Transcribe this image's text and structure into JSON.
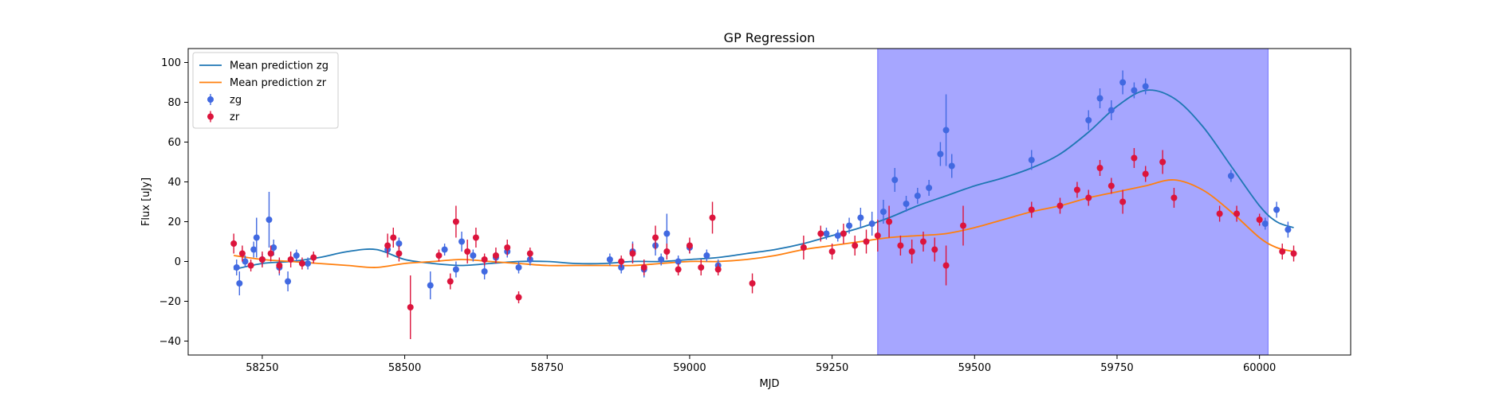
{
  "chart_data": {
    "type": "scatter",
    "title": "GP Regression",
    "xlabel": "MJD",
    "ylabel": "Flux [uJy]",
    "xlim": [
      58120,
      60160
    ],
    "ylim": [
      -47,
      107
    ],
    "x_ticks": [
      58250,
      58500,
      58750,
      59000,
      59250,
      59500,
      59750,
      60000
    ],
    "y_ticks": [
      -40,
      -20,
      0,
      20,
      40,
      60,
      80,
      100
    ],
    "legend_position": "upper-left",
    "shaded_region": {
      "x_start": 59330,
      "x_end": 60015,
      "color": "#a6a6ff"
    },
    "mean_predictions": [
      {
        "name": "Mean prediction zg",
        "color": "#1f77b4",
        "x": [
          58200,
          58250,
          58300,
          58350,
          58400,
          58450,
          58500,
          58550,
          58600,
          58650,
          58700,
          58750,
          58800,
          58850,
          58900,
          58950,
          59000,
          59050,
          59100,
          59150,
          59200,
          59250,
          59300,
          59350,
          59400,
          59450,
          59500,
          59550,
          59600,
          59650,
          59700,
          59750,
          59800,
          59850,
          59900,
          59950,
          60000,
          60030,
          60060
        ],
        "y": [
          -4,
          -1,
          0,
          2,
          5,
          6,
          1,
          -1,
          -2,
          -1,
          0,
          0,
          -1,
          -1,
          0,
          0,
          1,
          2,
          4,
          6,
          9,
          13,
          17,
          22,
          28,
          33,
          38,
          42,
          47,
          54,
          65,
          78,
          86,
          82,
          68,
          48,
          28,
          20,
          17
        ]
      },
      {
        "name": "Mean prediction zr",
        "color": "#ff7f0e",
        "x": [
          58200,
          58250,
          58300,
          58350,
          58400,
          58450,
          58500,
          58550,
          58600,
          58650,
          58700,
          58750,
          58800,
          58850,
          58900,
          58950,
          59000,
          59050,
          59100,
          59150,
          59200,
          59250,
          59300,
          59350,
          59400,
          59450,
          59500,
          59550,
          59600,
          59650,
          59700,
          59750,
          59800,
          59850,
          59900,
          59950,
          60000,
          60030,
          60060
        ],
        "y": [
          3,
          1,
          0,
          -1,
          -2,
          -3,
          -1,
          0,
          1,
          0,
          -1,
          -2,
          -2,
          -2,
          -2,
          -1,
          0,
          0,
          1,
          3,
          6,
          8,
          10,
          12,
          13,
          14,
          17,
          21,
          25,
          28,
          32,
          35,
          38,
          41,
          36,
          25,
          12,
          7,
          5
        ]
      }
    ],
    "series": [
      {
        "name": "zg",
        "color": "#4169e1",
        "x": [
          58205,
          58210,
          58220,
          58235,
          58240,
          58250,
          58262,
          58270,
          58280,
          58295,
          58310,
          58330,
          58470,
          58490,
          58545,
          58570,
          58590,
          58600,
          58620,
          58640,
          58660,
          58680,
          58700,
          58720,
          58860,
          58880,
          58900,
          58920,
          58940,
          58950,
          58960,
          58980,
          59000,
          59030,
          59050,
          59240,
          59260,
          59280,
          59300,
          59320,
          59340,
          59360,
          59380,
          59400,
          59420,
          59440,
          59450,
          59460,
          59600,
          59700,
          59720,
          59740,
          59760,
          59780,
          59800,
          59950,
          60010,
          60030,
          60050
        ],
        "y": [
          -3,
          -11,
          0,
          6,
          12,
          1,
          21,
          7,
          -3,
          -10,
          3,
          -1,
          6,
          9,
          -12,
          6,
          -4,
          10,
          3,
          -5,
          2,
          5,
          -3,
          1,
          1,
          -3,
          5,
          -4,
          8,
          1,
          14,
          0,
          7,
          3,
          -2,
          14,
          13,
          18,
          22,
          19,
          25,
          41,
          29,
          33,
          37,
          54,
          66,
          48,
          51,
          71,
          82,
          76,
          90,
          86,
          88,
          43,
          19,
          26,
          16
        ],
        "err": [
          4,
          6,
          3,
          4,
          10,
          3,
          14,
          4,
          4,
          5,
          3,
          3,
          3,
          3,
          7,
          3,
          4,
          5,
          3,
          4,
          3,
          3,
          3,
          3,
          3,
          3,
          5,
          4,
          5,
          3,
          10,
          3,
          3,
          3,
          3,
          3,
          3,
          4,
          5,
          6,
          6,
          6,
          4,
          4,
          4,
          6,
          18,
          6,
          5,
          5,
          5,
          5,
          6,
          4,
          4,
          3,
          3,
          4,
          4
        ]
      },
      {
        "name": "zr",
        "color": "#dc143c",
        "x": [
          58200,
          58215,
          58230,
          58250,
          58265,
          58280,
          58300,
          58320,
          58340,
          58470,
          58480,
          58490,
          58510,
          58560,
          58580,
          58590,
          58610,
          58625,
          58640,
          58660,
          58680,
          58700,
          58720,
          58880,
          58900,
          58920,
          58940,
          58960,
          58980,
          59000,
          59020,
          59040,
          59050,
          59110,
          59200,
          59230,
          59250,
          59270,
          59290,
          59310,
          59330,
          59350,
          59370,
          59390,
          59410,
          59430,
          59450,
          59480,
          59600,
          59650,
          59680,
          59700,
          59720,
          59740,
          59760,
          59780,
          59800,
          59830,
          59850,
          59930,
          59960,
          60000,
          60040,
          60060
        ],
        "y": [
          9,
          4,
          -2,
          1,
          4,
          -2,
          1,
          -1,
          2,
          8,
          12,
          4,
          -23,
          3,
          -10,
          20,
          5,
          12,
          1,
          3,
          7,
          -18,
          4,
          0,
          4,
          -3,
          12,
          5,
          -4,
          8,
          -3,
          22,
          -4,
          -11,
          7,
          14,
          5,
          14,
          8,
          10,
          13,
          20,
          8,
          5,
          10,
          6,
          -2,
          18,
          26,
          28,
          36,
          32,
          47,
          38,
          30,
          52,
          44,
          50,
          32,
          24,
          24,
          21,
          5,
          4
        ],
        "err": [
          5,
          4,
          3,
          4,
          4,
          4,
          4,
          3,
          3,
          6,
          5,
          4,
          16,
          3,
          4,
          8,
          6,
          5,
          3,
          4,
          4,
          3,
          3,
          3,
          5,
          4,
          6,
          4,
          3,
          4,
          4,
          8,
          3,
          5,
          6,
          4,
          4,
          5,
          5,
          6,
          8,
          8,
          5,
          6,
          5,
          6,
          10,
          10,
          4,
          4,
          4,
          4,
          4,
          4,
          6,
          5,
          4,
          6,
          5,
          4,
          4,
          3,
          4,
          4
        ]
      }
    ]
  }
}
